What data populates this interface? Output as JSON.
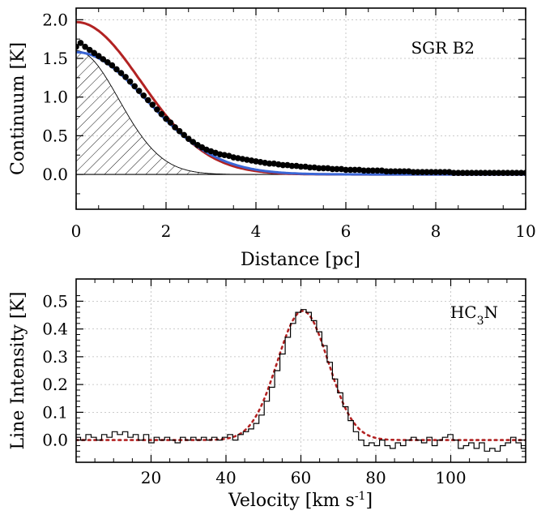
{
  "chart_data": [
    {
      "type": "line",
      "panel": "top",
      "xlabel": "Distance [pc]",
      "ylabel": "Continuum [K]",
      "annotation": "SGR B2",
      "xlim": [
        0,
        10
      ],
      "ylim": [
        -0.45,
        2.15
      ],
      "xticks": [
        "0",
        "2",
        "4",
        "6",
        "8",
        "10"
      ],
      "yticks": [
        "0.0",
        "0.5",
        "1.0",
        "1.5",
        "2.0"
      ],
      "grid": true,
      "colors": {
        "red": "#b22222",
        "blue": "#3a66d6",
        "points": "#000000"
      },
      "series": [
        {
          "kind": "points",
          "x": [
            0.0,
            0.1,
            0.2,
            0.3,
            0.4,
            0.5,
            0.6,
            0.7,
            0.8,
            0.9,
            1.0,
            1.1,
            1.2,
            1.3,
            1.4,
            1.5,
            1.6,
            1.7,
            1.8,
            1.9,
            2.0,
            2.1,
            2.2,
            2.3,
            2.4,
            2.5,
            2.6,
            2.7,
            2.8,
            2.9,
            3.0,
            3.1,
            3.2,
            3.3,
            3.4,
            3.5,
            3.6,
            3.7,
            3.8,
            3.9,
            4.0,
            4.1,
            4.2,
            4.3,
            4.4,
            4.5,
            4.6,
            4.7,
            4.8,
            4.9,
            5.0,
            5.1,
            5.2,
            5.3,
            5.4,
            5.5,
            5.6,
            5.7,
            5.8,
            5.9,
            6.0,
            6.1,
            6.2,
            6.3,
            6.4,
            6.5,
            6.6,
            6.7,
            6.8,
            6.9,
            7.0,
            7.1,
            7.2,
            7.3,
            7.4,
            7.5,
            7.6,
            7.7,
            7.8,
            7.9,
            8.0,
            8.1,
            8.2,
            8.3,
            8.4,
            8.5,
            8.6,
            8.7,
            8.8,
            8.9,
            9.0,
            9.1,
            9.2,
            9.3,
            9.4,
            9.5,
            9.6,
            9.7,
            9.8,
            9.9,
            10.0
          ],
          "y": [
            1.65,
            1.7,
            1.65,
            1.61,
            1.57,
            1.53,
            1.49,
            1.45,
            1.41,
            1.36,
            1.31,
            1.26,
            1.2,
            1.14,
            1.08,
            1.02,
            0.96,
            0.9,
            0.84,
            0.78,
            0.72,
            0.67,
            0.61,
            0.56,
            0.51,
            0.46,
            0.42,
            0.38,
            0.35,
            0.32,
            0.3,
            0.28,
            0.26,
            0.25,
            0.24,
            0.22,
            0.21,
            0.2,
            0.19,
            0.18,
            0.17,
            0.16,
            0.15,
            0.14,
            0.14,
            0.13,
            0.12,
            0.12,
            0.11,
            0.11,
            0.1,
            0.1,
            0.09,
            0.09,
            0.08,
            0.08,
            0.08,
            0.07,
            0.07,
            0.07,
            0.06,
            0.06,
            0.06,
            0.06,
            0.05,
            0.05,
            0.05,
            0.05,
            0.05,
            0.04,
            0.04,
            0.04,
            0.04,
            0.04,
            0.04,
            0.03,
            0.03,
            0.03,
            0.03,
            0.03,
            0.03,
            0.03,
            0.03,
            0.03,
            0.02,
            0.02,
            0.02,
            0.02,
            0.02,
            0.02,
            0.02,
            0.02,
            0.02,
            0.02,
            0.02,
            0.02,
            0.02,
            0.02,
            0.02,
            0.02,
            0.02
          ]
        },
        {
          "kind": "gaussian",
          "color": "red",
          "amplitude": 1.97,
          "center": 0,
          "sigma": 1.45,
          "x_max": 10
        },
        {
          "kind": "gaussian",
          "color": "blue",
          "amplitude": 1.58,
          "center": 0,
          "sigma": 1.57,
          "x_max": 10
        },
        {
          "kind": "hatched-gaussian",
          "color": "black",
          "amplitude": 1.6,
          "center": 0,
          "sigma": 0.95,
          "x_max": 5.5
        }
      ]
    },
    {
      "type": "line",
      "panel": "bottom",
      "xlabel": "Velocity [km s",
      "xlabel_sup": "-1",
      "xlabel_end": "]",
      "ylabel": "Line Intensity [K]",
      "annotation": "HC",
      "annotation_sub": "3",
      "annotation_end": "N",
      "xlim": [
        0,
        120
      ],
      "ylim": [
        -0.08,
        0.58
      ],
      "xticks": [
        "20",
        "40",
        "60",
        "80",
        "100"
      ],
      "yticks": [
        "0.0",
        "0.1",
        "0.2",
        "0.3",
        "0.4",
        "0.5"
      ],
      "grid": true,
      "colors": {
        "fit": "#b22222",
        "spectrum": "#000000"
      },
      "series": [
        {
          "kind": "histogram",
          "x": [
            0.5,
            1.9,
            3.3,
            4.7,
            6.1,
            7.5,
            8.9,
            10.3,
            11.7,
            13.1,
            14.5,
            15.9,
            17.3,
            18.7,
            20.1,
            21.5,
            22.9,
            24.3,
            25.7,
            27.1,
            28.5,
            29.9,
            31.3,
            32.7,
            34.1,
            35.5,
            36.9,
            38.3,
            39.7,
            41.1,
            42.5,
            43.9,
            45.3,
            46.7,
            48.1,
            49.5,
            50.9,
            52.3,
            53.7,
            55.1,
            56.5,
            57.9,
            59.3,
            60.7,
            62.1,
            63.5,
            64.9,
            66.3,
            67.7,
            69.1,
            70.5,
            71.9,
            73.3,
            74.7,
            76.1,
            77.5,
            78.9,
            80.3,
            81.7,
            83.1,
            84.5,
            85.9,
            87.3,
            88.7,
            90.1,
            91.5,
            92.9,
            94.3,
            95.7,
            97.1,
            98.5,
            99.9,
            101.3,
            102.7,
            104.1,
            105.5,
            106.9,
            108.3,
            109.7,
            111.1,
            112.5,
            113.9,
            115.3,
            116.7,
            118.1,
            119.5
          ],
          "y": [
            0.01,
            0.0,
            0.02,
            0.01,
            0.0,
            0.02,
            0.01,
            0.03,
            0.02,
            0.03,
            0.01,
            0.02,
            0.0,
            0.02,
            -0.01,
            0.01,
            0.0,
            0.01,
            0.0,
            -0.01,
            0.01,
            0.0,
            0.01,
            0.0,
            0.01,
            0.0,
            0.01,
            0.0,
            0.01,
            0.02,
            0.0,
            0.02,
            0.03,
            0.04,
            0.06,
            0.09,
            0.14,
            0.19,
            0.25,
            0.31,
            0.37,
            0.42,
            0.46,
            0.47,
            0.46,
            0.43,
            0.39,
            0.34,
            0.28,
            0.22,
            0.17,
            0.12,
            0.07,
            0.03,
            0.0,
            -0.02,
            -0.01,
            -0.02,
            0.0,
            -0.02,
            -0.03,
            -0.01,
            -0.02,
            0.0,
            0.01,
            0.0,
            -0.01,
            0.01,
            -0.02,
            0.0,
            0.01,
            0.02,
            0.0,
            -0.03,
            -0.02,
            -0.01,
            -0.03,
            -0.01,
            -0.04,
            -0.03,
            -0.04,
            -0.02,
            -0.01,
            0.01,
            -0.01,
            -0.03
          ]
        },
        {
          "kind": "gaussian-dotted",
          "color": "fit",
          "amplitude": 0.465,
          "center": 60.5,
          "sigma": 6.8,
          "x_min": 0,
          "x_max": 120
        }
      ]
    }
  ]
}
